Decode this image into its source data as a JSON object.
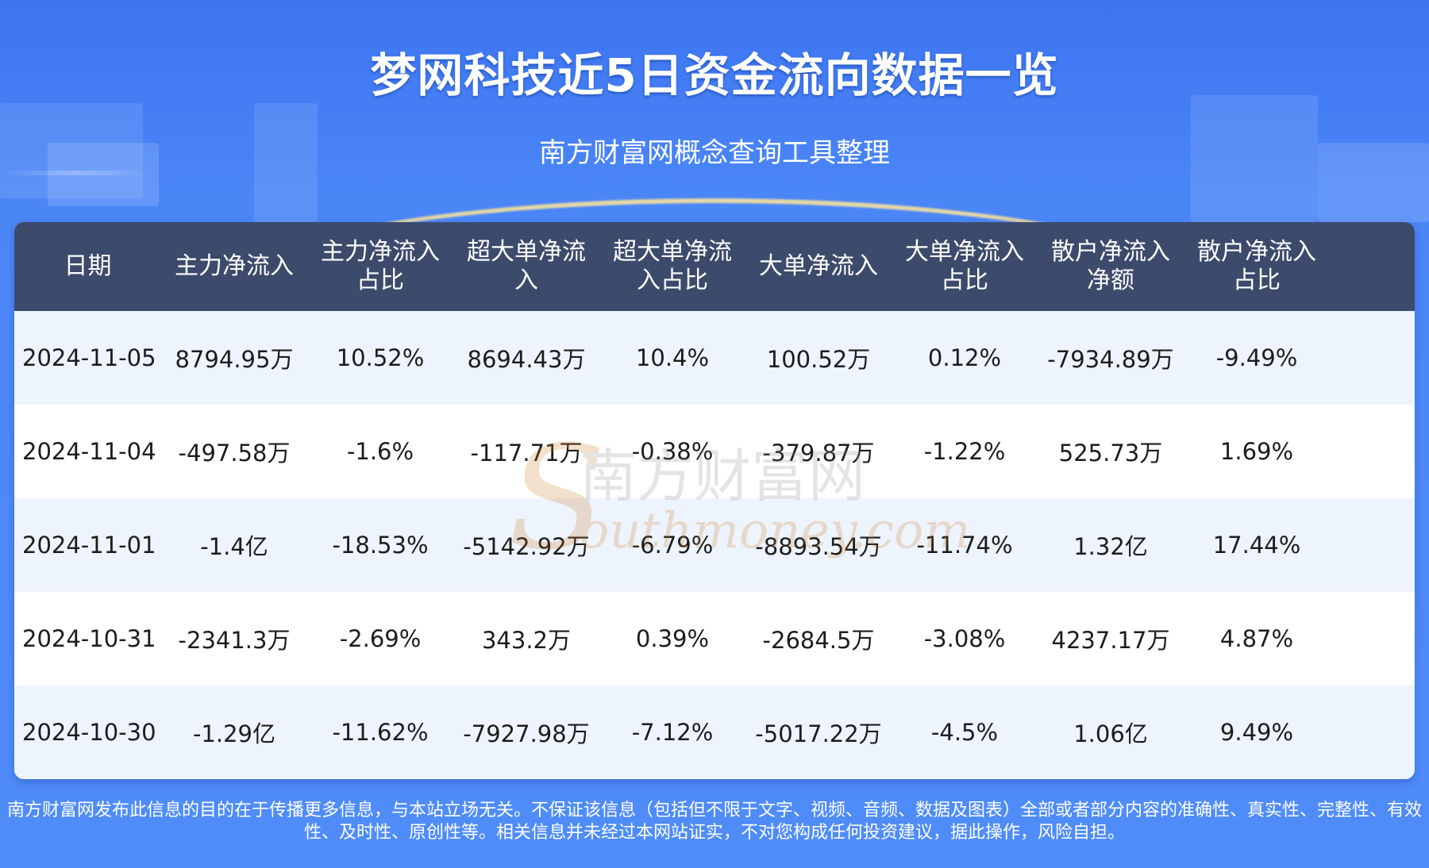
{
  "header": {
    "title": "梦网科技近5日资金流向数据一览",
    "subtitle": "南方财富网概念查询工具整理"
  },
  "table": {
    "columns": [
      {
        "line1": "日期",
        "line2": ""
      },
      {
        "line1": "主力净流入",
        "line2": ""
      },
      {
        "line1": "主力净流入",
        "line2": "占比"
      },
      {
        "line1": "超大单净流",
        "line2": "入"
      },
      {
        "line1": "超大单净流",
        "line2": "入占比"
      },
      {
        "line1": "大单净流入",
        "line2": ""
      },
      {
        "line1": "大单净流入",
        "line2": "占比"
      },
      {
        "line1": "散户净流入",
        "line2": "净额"
      },
      {
        "line1": "散户净流入",
        "line2": "占比"
      }
    ],
    "rows": [
      [
        "2024-11-05",
        "8794.95万",
        "10.52%",
        "8694.43万",
        "10.4%",
        "100.52万",
        "0.12%",
        "-7934.89万",
        "-9.49%"
      ],
      [
        "2024-11-04",
        "-497.58万",
        "-1.6%",
        "-117.71万",
        "-0.38%",
        "-379.87万",
        "-1.22%",
        "525.73万",
        "1.69%"
      ],
      [
        "2024-11-01",
        "-1.4亿",
        "-18.53%",
        "-5142.92万",
        "-6.79%",
        "-8893.54万",
        "-11.74%",
        "1.32亿",
        "17.44%"
      ],
      [
        "2024-10-31",
        "-2341.3万",
        "-2.69%",
        "343.2万",
        "0.39%",
        "-2684.5万",
        "-3.08%",
        "4237.17万",
        "4.87%"
      ],
      [
        "2024-10-30",
        "-1.29亿",
        "-11.62%",
        "-7927.98万",
        "-7.12%",
        "-5017.22万",
        "-4.5%",
        "1.06亿",
        "9.49%"
      ]
    ]
  },
  "watermark": {
    "cn": "南方财富网",
    "en": "outhmoney.com"
  },
  "disclaimer": {
    "line1": "南方财富网发布此信息的目的在于传播更多信息，与本站立场无关。不保证该信息（包括但不限于文字、视频、音频、数据及图表）全部或者部分内容的准确性、真实性、完整性、有效",
    "line2": "性、及时性、原创性等。相关信息并未经过本网站证实，不对您构成任何投资建议，据此操作，风险自担。"
  }
}
